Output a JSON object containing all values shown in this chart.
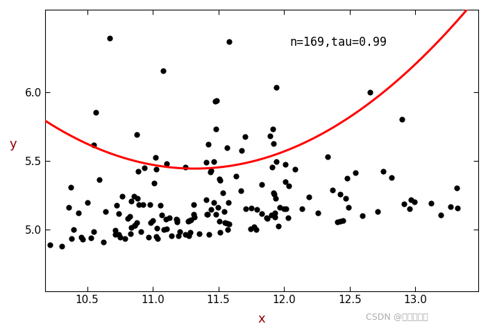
{
  "xlabel": "x",
  "ylabel": "y",
  "annotation": "n=169,tau=0.99",
  "xlim": [
    10.18,
    13.48
  ],
  "ylim": [
    4.55,
    6.6
  ],
  "xticks": [
    10.5,
    11.0,
    11.5,
    12.0,
    12.5,
    13.0
  ],
  "yticks": [
    5.0,
    5.5,
    6.0
  ],
  "curve_color": "#FF0000",
  "dot_color": "#000000",
  "bg_color": "#FFFFFF",
  "watermark": "CSDN @带我去滑雪",
  "tick_label_color": "#0000CD",
  "axis_label_color": "#8B0000",
  "a_coef": 0.52,
  "b_coef": -12.09,
  "c_coef": 75.72,
  "figsize": [
    7.03,
    4.83
  ],
  "dpi": 100
}
